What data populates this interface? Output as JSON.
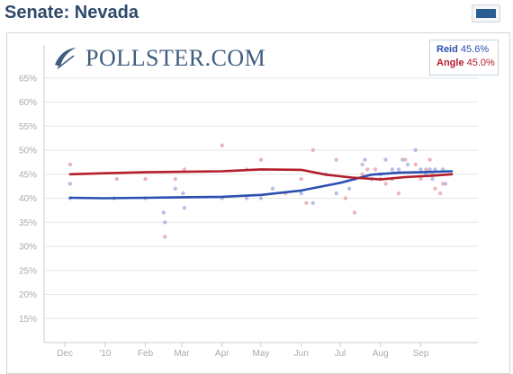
{
  "page": {
    "title": "Senate: Nevada",
    "logo_text": "POLLSTER.COM"
  },
  "colors": {
    "reid": "#2b4fb0",
    "angle": "#b31d2c",
    "reid_dots": "#aab6e0",
    "angle_dots": "#e7aab3",
    "mixed_dots": "#c7a8c8",
    "grid": "#e6e6e6"
  },
  "chart_data": {
    "type": "line",
    "title": "",
    "xlabel": "",
    "ylabel": "",
    "ylim": [
      10,
      70
    ],
    "y_ticks": [
      "15%",
      "20%",
      "25%",
      "30%",
      "35%",
      "40%",
      "45%",
      "50%",
      "55%",
      "60%",
      "65%"
    ],
    "x_tick_labels": [
      "Dec",
      "'10",
      "Feb",
      "Mar",
      "Apr",
      "May",
      "Jun",
      "Jul",
      "Aug",
      "Sep"
    ],
    "x_tick_dates": [
      "2009-12-01",
      "2010-01-01",
      "2010-02-01",
      "2010-03-01",
      "2010-04-01",
      "2010-05-01",
      "2010-06-01",
      "2010-07-01",
      "2010-08-01",
      "2010-09-01"
    ],
    "xlim": [
      "2009-11-15",
      "2010-10-15"
    ],
    "legend_position": "top-right",
    "grid": true,
    "series": [
      {
        "name": "Reid",
        "value_label": "45.6%",
        "trend": [
          [
            "2009-12-05",
            40.1
          ],
          [
            "2010-01-01",
            40.0
          ],
          [
            "2010-02-01",
            40.1
          ],
          [
            "2010-03-01",
            40.2
          ],
          [
            "2010-04-01",
            40.3
          ],
          [
            "2010-05-01",
            40.7
          ],
          [
            "2010-06-01",
            41.6
          ],
          [
            "2010-07-01",
            43.2
          ],
          [
            "2010-07-25",
            44.9
          ],
          [
            "2010-08-15",
            45.3
          ],
          [
            "2010-09-01",
            45.4
          ],
          [
            "2010-09-25",
            45.6
          ]
        ],
        "polls": [
          [
            "2009-12-05",
            43
          ],
          [
            "2009-12-05",
            40
          ],
          [
            "2010-01-08",
            40
          ],
          [
            "2010-02-01",
            40
          ],
          [
            "2010-02-16",
            35
          ],
          [
            "2010-02-15",
            37
          ],
          [
            "2010-02-24",
            42
          ],
          [
            "2010-03-03",
            38
          ],
          [
            "2010-03-02",
            41
          ],
          [
            "2010-04-01",
            40
          ],
          [
            "2010-04-20",
            40
          ],
          [
            "2010-05-01",
            40
          ],
          [
            "2010-05-10",
            42
          ],
          [
            "2010-06-01",
            41
          ],
          [
            "2010-06-10",
            39
          ],
          [
            "2010-06-20",
            45
          ],
          [
            "2010-06-28",
            41
          ],
          [
            "2010-07-08",
            42
          ],
          [
            "2010-07-12",
            44
          ],
          [
            "2010-07-18",
            47
          ],
          [
            "2010-07-20",
            48
          ],
          [
            "2010-07-25",
            44
          ],
          [
            "2010-08-01",
            45
          ],
          [
            "2010-08-05",
            48
          ],
          [
            "2010-08-10",
            46
          ],
          [
            "2010-08-15",
            46
          ],
          [
            "2010-08-18",
            48
          ],
          [
            "2010-08-22",
            47
          ],
          [
            "2010-08-28",
            50
          ],
          [
            "2010-09-01",
            46
          ],
          [
            "2010-09-05",
            45
          ],
          [
            "2010-09-08",
            46
          ],
          [
            "2010-09-10",
            44
          ],
          [
            "2010-09-12",
            46
          ],
          [
            "2010-09-18",
            46
          ],
          [
            "2010-09-20",
            43
          ]
        ]
      },
      {
        "name": "Angle",
        "value_label": "45.0%",
        "trend": [
          [
            "2009-12-05",
            45.0
          ],
          [
            "2010-01-01",
            45.2
          ],
          [
            "2010-02-01",
            45.4
          ],
          [
            "2010-03-01",
            45.5
          ],
          [
            "2010-04-01",
            45.6
          ],
          [
            "2010-05-01",
            46.0
          ],
          [
            "2010-06-01",
            45.9
          ],
          [
            "2010-06-20",
            44.9
          ],
          [
            "2010-07-10",
            44.3
          ],
          [
            "2010-08-01",
            43.9
          ],
          [
            "2010-08-20",
            44.4
          ],
          [
            "2010-09-10",
            44.7
          ],
          [
            "2010-09-25",
            45.0
          ]
        ],
        "polls": [
          [
            "2009-12-05",
            47
          ],
          [
            "2010-01-10",
            44
          ],
          [
            "2010-02-01",
            44
          ],
          [
            "2010-02-16",
            32
          ],
          [
            "2010-02-24",
            44
          ],
          [
            "2010-03-03",
            46
          ],
          [
            "2010-04-01",
            51
          ],
          [
            "2010-04-20",
            46
          ],
          [
            "2010-05-01",
            48
          ],
          [
            "2010-05-20",
            41
          ],
          [
            "2010-06-01",
            44
          ],
          [
            "2010-06-05",
            39
          ],
          [
            "2010-06-10",
            50
          ],
          [
            "2010-06-28",
            48
          ],
          [
            "2010-07-05",
            40
          ],
          [
            "2010-07-12",
            37
          ],
          [
            "2010-07-18",
            45
          ],
          [
            "2010-07-22",
            46
          ],
          [
            "2010-07-28",
            46
          ],
          [
            "2010-08-01",
            44
          ],
          [
            "2010-08-05",
            43
          ],
          [
            "2010-08-10",
            44
          ],
          [
            "2010-08-15",
            41
          ],
          [
            "2010-08-20",
            48
          ],
          [
            "2010-08-28",
            47
          ],
          [
            "2010-09-01",
            44
          ],
          [
            "2010-09-05",
            46
          ],
          [
            "2010-09-08",
            48
          ],
          [
            "2010-09-10",
            45
          ],
          [
            "2010-09-12",
            42
          ],
          [
            "2010-09-16",
            41
          ],
          [
            "2010-09-18",
            43
          ]
        ]
      }
    ]
  }
}
